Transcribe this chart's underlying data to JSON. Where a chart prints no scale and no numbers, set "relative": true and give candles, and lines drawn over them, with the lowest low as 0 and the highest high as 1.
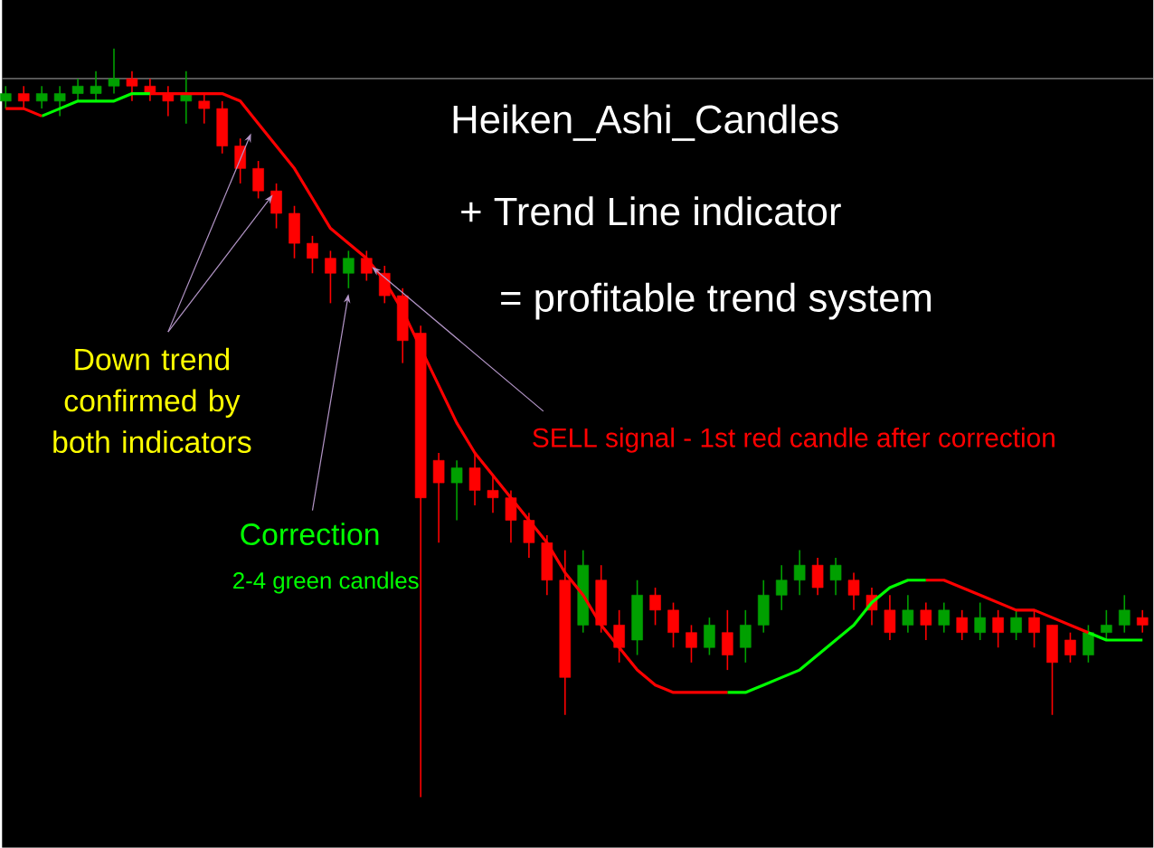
{
  "chart_data": {
    "type": "candlestick",
    "relative": true,
    "title": "Heiken_Ashi_Candles",
    "subtitle": "+ Trend Line indicator",
    "annotations": [
      "= profitable trend system",
      "Down trend confirmed by both indicators",
      "SELL signal - 1st red candle after correction",
      "Correction",
      "2-4 green candles"
    ],
    "categories": [
      null,
      null,
      null,
      null,
      null,
      null,
      null,
      null,
      null,
      null,
      null,
      null,
      null,
      null,
      null,
      null,
      null,
      null,
      null,
      null,
      null,
      null,
      null,
      null,
      null,
      null,
      null,
      null,
      null,
      null,
      null,
      null,
      null,
      null,
      null,
      null,
      null,
      null,
      null,
      null,
      null,
      null,
      null,
      null,
      null,
      null,
      null,
      null,
      null,
      null,
      null,
      null,
      null,
      null,
      null,
      null,
      null,
      null,
      null,
      null,
      null,
      null,
      null,
      null
    ],
    "ohlc": [
      [
        0.93,
        0.95,
        0.92,
        0.94
      ],
      [
        0.94,
        0.95,
        0.92,
        0.93
      ],
      [
        0.93,
        0.95,
        0.92,
        0.94
      ],
      [
        0.93,
        0.95,
        0.91,
        0.94
      ],
      [
        0.94,
        0.96,
        0.93,
        0.95
      ],
      [
        0.94,
        0.97,
        0.93,
        0.95
      ],
      [
        0.95,
        1.0,
        0.94,
        0.96
      ],
      [
        0.96,
        0.97,
        0.93,
        0.95
      ],
      [
        0.95,
        0.96,
        0.93,
        0.94
      ],
      [
        0.94,
        0.95,
        0.91,
        0.93
      ],
      [
        0.93,
        0.97,
        0.9,
        0.94
      ],
      [
        0.93,
        0.94,
        0.9,
        0.92
      ],
      [
        0.92,
        0.93,
        0.86,
        0.87
      ],
      [
        0.87,
        0.88,
        0.82,
        0.84
      ],
      [
        0.84,
        0.85,
        0.8,
        0.81
      ],
      [
        0.81,
        0.82,
        0.76,
        0.78
      ],
      [
        0.78,
        0.79,
        0.72,
        0.74
      ],
      [
        0.74,
        0.75,
        0.7,
        0.72
      ],
      [
        0.72,
        0.73,
        0.66,
        0.7
      ],
      [
        0.7,
        0.73,
        0.68,
        0.72
      ],
      [
        0.72,
        0.73,
        0.69,
        0.7
      ],
      [
        0.7,
        0.71,
        0.66,
        0.67
      ],
      [
        0.67,
        0.68,
        0.58,
        0.61
      ],
      [
        0.62,
        0.63,
        0,
        0.4
      ],
      [
        0.45,
        0.46,
        0.34,
        0.42
      ],
      [
        0.42,
        0.45,
        0.37,
        0.44
      ],
      [
        0.44,
        0.46,
        0.39,
        0.41
      ],
      [
        0.41,
        0.43,
        0.38,
        0.4
      ],
      [
        0.4,
        0.41,
        0.34,
        0.37
      ],
      [
        0.37,
        0.38,
        0.32,
        0.34
      ],
      [
        0.34,
        0.35,
        0.27,
        0.29
      ],
      [
        0.29,
        0.33,
        0.11,
        0.16
      ],
      [
        0.23,
        0.33,
        0.22,
        0.31
      ],
      [
        0.29,
        0.31,
        0.22,
        0.23
      ],
      [
        0.23,
        0.25,
        0.18,
        0.2
      ],
      [
        0.21,
        0.29,
        0.19,
        0.27
      ],
      [
        0.27,
        0.28,
        0.23,
        0.25
      ],
      [
        0.25,
        0.26,
        0.2,
        0.22
      ],
      [
        0.22,
        0.23,
        0.18,
        0.2
      ],
      [
        0.2,
        0.24,
        0.19,
        0.23
      ],
      [
        0.22,
        0.25,
        0.17,
        0.19
      ],
      [
        0.2,
        0.25,
        0.18,
        0.23
      ],
      [
        0.23,
        0.29,
        0.22,
        0.27
      ],
      [
        0.27,
        0.31,
        0.25,
        0.29
      ],
      [
        0.29,
        0.33,
        0.27,
        0.31
      ],
      [
        0.31,
        0.32,
        0.27,
        0.28
      ],
      [
        0.29,
        0.32,
        0.27,
        0.31
      ],
      [
        0.29,
        0.3,
        0.25,
        0.27
      ],
      [
        0.27,
        0.28,
        0.23,
        0.25
      ],
      [
        0.25,
        0.27,
        0.21,
        0.22
      ],
      [
        0.23,
        0.27,
        0.22,
        0.25
      ],
      [
        0.25,
        0.26,
        0.21,
        0.23
      ],
      [
        0.23,
        0.26,
        0.22,
        0.25
      ],
      [
        0.24,
        0.25,
        0.21,
        0.22
      ],
      [
        0.22,
        0.26,
        0.21,
        0.24
      ],
      [
        0.24,
        0.25,
        0.2,
        0.22
      ],
      [
        0.22,
        0.25,
        0.21,
        0.24
      ],
      [
        0.24,
        0.25,
        0.2,
        0.22
      ],
      [
        0.23,
        0.23,
        0.11,
        0.18
      ],
      [
        0.21,
        0.22,
        0.18,
        0.19
      ],
      [
        0.19,
        0.23,
        0.18,
        0.22
      ],
      [
        0.22,
        0.25,
        0.21,
        0.23
      ],
      [
        0.23,
        0.27,
        0.22,
        0.25
      ],
      [
        0.24,
        0.25,
        0.22,
        0.23
      ]
    ],
    "colors": [
      "#00a000",
      "#ff0000",
      "#00a000",
      "#00a000",
      "#00a000",
      "#00a000",
      "#00a000",
      "#ff0000",
      "#ff0000",
      "#ff0000",
      "#00a000",
      "#ff0000",
      "#ff0000",
      "#ff0000",
      "#ff0000",
      "#ff0000",
      "#ff0000",
      "#ff0000",
      "#ff0000",
      "#00a000",
      "#ff0000",
      "#ff0000",
      "#ff0000",
      "#ff0000",
      "#ff0000",
      "#00a000",
      "#ff0000",
      "#ff0000",
      "#ff0000",
      "#ff0000",
      "#ff0000",
      "#ff0000",
      "#00a000",
      "#ff0000",
      "#ff0000",
      "#00a000",
      "#ff0000",
      "#ff0000",
      "#ff0000",
      "#00a000",
      "#ff0000",
      "#00a000",
      "#00a000",
      "#00a000",
      "#00a000",
      "#ff0000",
      "#00a000",
      "#ff0000",
      "#ff0000",
      "#ff0000",
      "#00a000",
      "#ff0000",
      "#00a000",
      "#ff0000",
      "#00a000",
      "#ff0000",
      "#00a000",
      "#ff0000",
      "#ff0000",
      "#ff0000",
      "#00a000",
      "#00a000",
      "#00a000",
      "#ff0000"
    ],
    "series": [
      {
        "type": "line",
        "color": "#ff0000",
        "values": [
          0.92,
          0.92,
          0.91,
          null,
          null,
          null,
          null,
          null,
          0.94,
          0.94,
          0.94,
          0.94,
          0.94,
          0.93,
          0.9,
          0.87,
          0.84,
          0.8,
          0.76,
          0.74,
          0.72,
          0.69,
          0.65,
          0.6,
          0.55,
          0.5,
          0.46,
          0.43,
          0.4,
          0.37,
          0.34,
          0.3,
          0.27,
          0.23,
          0.2,
          0.17,
          0.15,
          0.14,
          0.14,
          0.14,
          0.14,
          null,
          null,
          null,
          null,
          null,
          null,
          null,
          null,
          null,
          null,
          0.29,
          0.29,
          0.28,
          0.27,
          0.26,
          0.25,
          0.25,
          0.24,
          0.23,
          0.22,
          null,
          null,
          null
        ]
      },
      {
        "type": "line",
        "color": "#00ff00",
        "values": [
          null,
          null,
          0.91,
          0.92,
          0.93,
          0.93,
          0.93,
          0.94,
          0.94,
          null,
          null,
          null,
          null,
          null,
          null,
          null,
          null,
          null,
          null,
          null,
          null,
          null,
          null,
          null,
          null,
          null,
          null,
          null,
          null,
          null,
          null,
          null,
          null,
          null,
          null,
          null,
          null,
          null,
          null,
          null,
          0.14,
          0.14,
          0.15,
          0.16,
          0.17,
          0.19,
          0.21,
          0.23,
          0.26,
          0.28,
          0.29,
          0.29,
          null,
          null,
          null,
          null,
          null,
          null,
          null,
          null,
          0.22,
          0.21,
          0.21,
          0.21
        ]
      }
    ],
    "ref_lines": [
      {
        "axis": "y",
        "value": 0.96,
        "color": "#808080"
      }
    ]
  }
}
